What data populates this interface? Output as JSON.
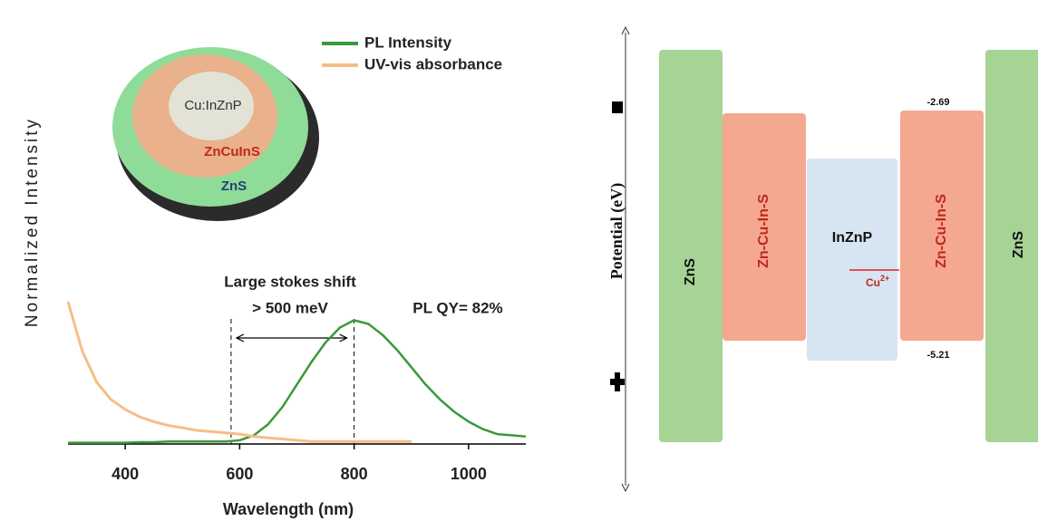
{
  "chart_data": {
    "type": "line",
    "x_label": "Wavelength (nm)",
    "y_label": "Normalized Intensity",
    "x": [
      300,
      325,
      350,
      375,
      400,
      425,
      450,
      475,
      500,
      525,
      550,
      575,
      600,
      625,
      650,
      675,
      700,
      725,
      750,
      775,
      800,
      825,
      850,
      875,
      900,
      925,
      950,
      975,
      1000,
      1025,
      1050,
      1075,
      1100
    ],
    "series": [
      {
        "name": "PL Intensity",
        "color": "#3a9a3a",
        "values": [
          0.01,
          0.01,
          0.01,
          0.01,
          0.01,
          0.015,
          0.015,
          0.02,
          0.02,
          0.02,
          0.02,
          0.02,
          0.03,
          0.07,
          0.16,
          0.3,
          0.48,
          0.66,
          0.82,
          0.94,
          1.0,
          0.97,
          0.88,
          0.76,
          0.62,
          0.48,
          0.36,
          0.26,
          0.18,
          0.12,
          0.08,
          0.07,
          0.06
        ]
      },
      {
        "name": "UV-vis absorbance",
        "color": "#f5be87",
        "values": [
          1.15,
          0.75,
          0.5,
          0.36,
          0.28,
          0.22,
          0.18,
          0.15,
          0.13,
          0.11,
          0.1,
          0.09,
          0.08,
          0.06,
          0.05,
          0.04,
          0.03,
          0.02,
          0.02,
          0.02,
          0.02,
          0.02,
          0.02,
          0.02,
          0.02,
          null,
          null,
          null,
          null,
          null,
          null,
          null,
          null
        ]
      }
    ],
    "xlim": [
      300,
      1100
    ],
    "xticks": [
      400,
      600,
      800,
      1000
    ],
    "ylim": [
      0,
      3.5
    ],
    "markers": [
      585,
      800
    ],
    "annotations": [
      "Large stokes shift",
      "> 500 meV",
      "PL QY= 82%"
    ],
    "inset_labels": [
      "Cu:InZnP",
      "ZnCuInS",
      "ZnS"
    ]
  },
  "diagram": {
    "y_label": "Potential (eV)",
    "blocks": [
      "ZnS",
      "Zn-Cu-In-S",
      "InZnP",
      "Zn-Cu-In-S",
      "ZnS"
    ],
    "levels": [
      "-2.69",
      "-5.21"
    ],
    "dopant": {
      "text": "Cu",
      "superscript": "2+"
    }
  }
}
